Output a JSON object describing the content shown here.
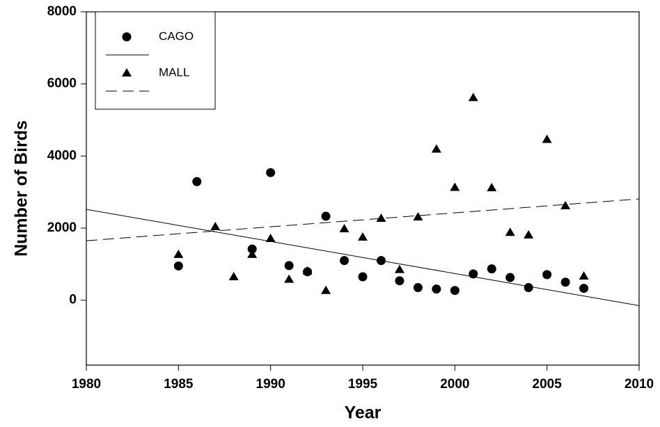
{
  "chart_data": {
    "type": "scatter",
    "x_label": "Year",
    "y_label": "Number of Birds",
    "xlim": [
      1980,
      2010
    ],
    "xticks": [
      1980,
      1985,
      1990,
      1995,
      2000,
      2005,
      2010
    ],
    "ylim": [
      -1800,
      8000
    ],
    "yticks": [
      0,
      2000,
      4000,
      6000,
      8000
    ],
    "legend": "upper left",
    "series": [
      {
        "name": "CAGO",
        "color": "#000000",
        "marker": "circle",
        "line_style": "solid",
        "x": [
          1985,
          1986,
          1989,
          1990,
          1991,
          1992,
          1993,
          1994,
          1995,
          1996,
          1997,
          1998,
          1999,
          2000,
          2001,
          2002,
          2003,
          2004,
          2005,
          2006,
          2007
        ],
        "values": [
          950,
          3290,
          1420,
          3540,
          960,
          790,
          2330,
          1100,
          650,
          1100,
          540,
          350,
          310,
          270,
          730,
          870,
          630,
          350,
          710,
          500,
          330
        ],
        "fit": {
          "x": [
            1980,
            2010
          ],
          "values": [
            2520,
            -150
          ]
        }
      },
      {
        "name": "MALL",
        "color": "#000000",
        "marker": "triangle",
        "line_style": "dashed",
        "x": [
          1985,
          1987,
          1988,
          1989,
          1990,
          1991,
          1992,
          1993,
          1994,
          1995,
          1996,
          1997,
          1998,
          1999,
          2000,
          2001,
          2002,
          2003,
          2004,
          2005,
          2006,
          2007
        ],
        "values": [
          1270,
          2040,
          650,
          1270,
          1710,
          580,
          810,
          270,
          1980,
          1750,
          2270,
          850,
          2310,
          4190,
          3130,
          5620,
          3120,
          1880,
          1810,
          4460,
          2620,
          670
        ],
        "fit": {
          "x": [
            1980,
            2010
          ],
          "values": [
            1650,
            2810
          ]
        }
      }
    ]
  }
}
